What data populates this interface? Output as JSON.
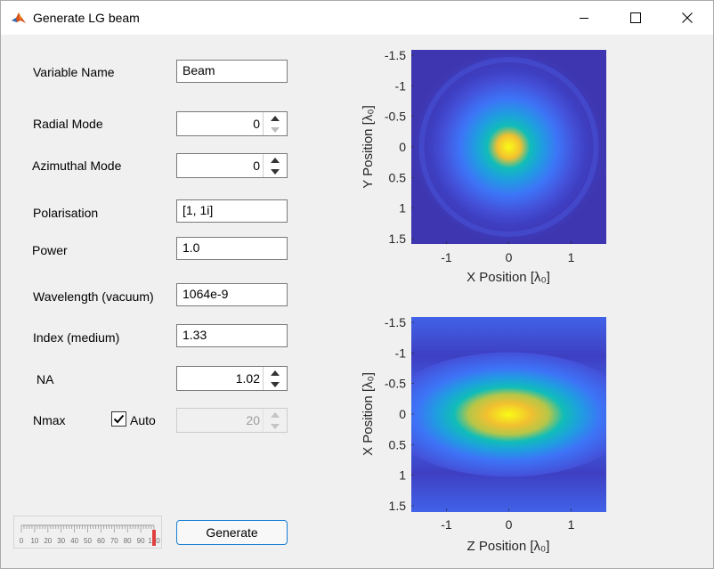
{
  "window": {
    "title": "Generate LG beam",
    "icon": "matlab-icon",
    "controls": [
      "minimize-icon",
      "maximize-icon",
      "close-icon"
    ]
  },
  "form": {
    "variable_name": {
      "label": "Variable Name",
      "value": "Beam"
    },
    "radial_mode": {
      "label": "Radial Mode",
      "value": "0"
    },
    "azimuthal_mode": {
      "label": "Azimuthal Mode",
      "value": "0"
    },
    "polarisation": {
      "label": "Polarisation",
      "value": "[1, 1i]"
    },
    "power": {
      "label": "Power",
      "value": "1.0"
    },
    "wavelength": {
      "label": "Wavelength (vacuum)",
      "value": "1064e-9"
    },
    "index": {
      "label": "Index (medium)",
      "value": "1.33"
    },
    "na": {
      "label": "NA",
      "value": "1.02"
    },
    "nmax": {
      "label": "Nmax",
      "auto_label": "Auto",
      "auto_checked": true,
      "value": "20"
    }
  },
  "slider": {
    "ticks": [
      "0",
      "10",
      "20",
      "30",
      "40",
      "50",
      "60",
      "70",
      "80",
      "90",
      "100"
    ],
    "value": 100,
    "accent": "#e04040"
  },
  "generate_button": {
    "label": "Generate"
  },
  "plots": {
    "xy": {
      "xlabel": "X  Position  [λ₀]",
      "ylabel": "Y  Position  [λ₀]",
      "xticks": [
        "-1",
        "0",
        "1"
      ],
      "yticks": [
        "-1.5",
        "-1",
        "-0.5",
        "0",
        "0.5",
        "1",
        "1.5"
      ]
    },
    "xz": {
      "xlabel": "Z  Position  [λ₀]",
      "ylabel": "X  Position  [λ₀]",
      "xticks": [
        "-1",
        "0",
        "1"
      ],
      "yticks": [
        "-1.5",
        "-1",
        "-0.5",
        "0",
        "0.5",
        "1",
        "1.5"
      ]
    },
    "colormap": [
      "#3e26a8",
      "#4743e4",
      "#3d74f7",
      "#1f9ee0",
      "#10bdb8",
      "#5bcb7f",
      "#b6c648",
      "#f2c030",
      "#f9fb15"
    ]
  }
}
